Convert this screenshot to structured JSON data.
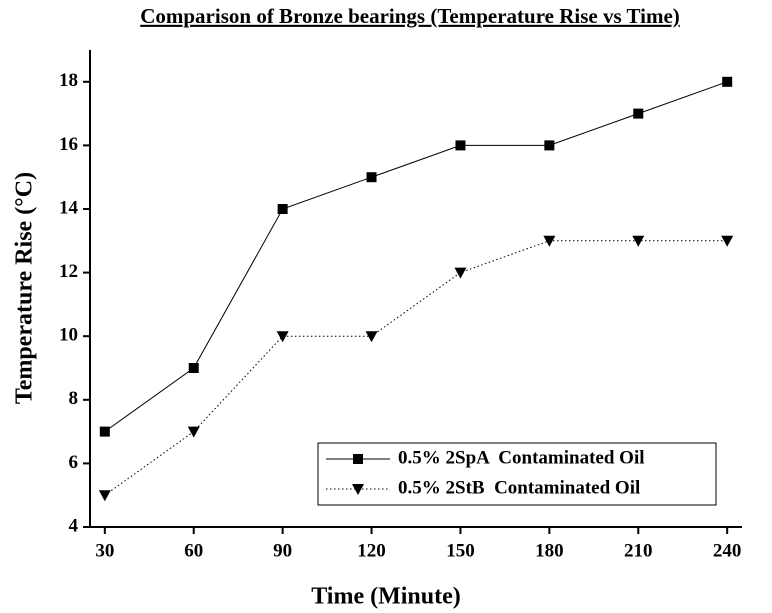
{
  "chart_data": {
    "type": "line",
    "title": "Comparison of Bronze bearings (Temperature Rise vs Time)",
    "x_label": "Time (Minute)",
    "y_label": "Temperature Rise (°C)",
    "x": [
      30,
      60,
      90,
      120,
      150,
      180,
      210,
      240
    ],
    "series": [
      {
        "name": "0.5% 2SpA  Contaminated Oil",
        "color": "#000000",
        "marker": "square",
        "line_style": "solid",
        "values": [
          7,
          9,
          14,
          15,
          16,
          16,
          17,
          18
        ]
      },
      {
        "name": "0.5% 2StB  Contaminated Oil",
        "color": "#000000",
        "marker": "triangle-down",
        "line_style": "dotted",
        "values": [
          5,
          7,
          10,
          10,
          12,
          13,
          13,
          13
        ]
      }
    ],
    "xlim": [
      25,
      245
    ],
    "xticks": [
      30,
      60,
      90,
      120,
      150,
      180,
      210,
      240
    ],
    "ylim": [
      4,
      19
    ],
    "yticks": [
      4,
      6,
      8,
      10,
      12,
      14,
      16,
      18
    ],
    "grid": false,
    "legend": "lower right"
  }
}
